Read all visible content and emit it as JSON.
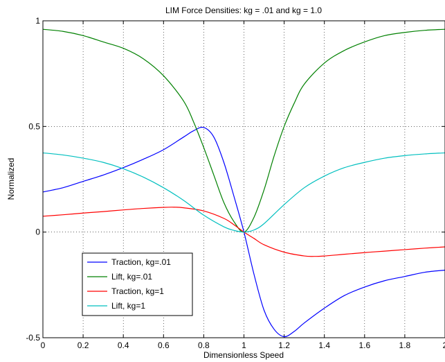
{
  "chart_data": {
    "type": "line",
    "title": "LIM Force Densities: kg = .01 and kg = 1.0",
    "xlabel": "Dimensionless Speed",
    "ylabel": "Normalized",
    "xlim": [
      0,
      2
    ],
    "ylim": [
      -0.5,
      1
    ],
    "grid": true,
    "legend_position": "lower-left",
    "x_ticks": [
      {
        "value": 0,
        "label": "0"
      },
      {
        "value": 0.2,
        "label": "0.2"
      },
      {
        "value": 0.4,
        "label": "0.4"
      },
      {
        "value": 0.6,
        "label": "0.6"
      },
      {
        "value": 0.8,
        "label": "0.8"
      },
      {
        "value": 1.0,
        "label": "1"
      },
      {
        "value": 1.2,
        "label": "1.2"
      },
      {
        "value": 1.4,
        "label": "1.4"
      },
      {
        "value": 1.6,
        "label": "1.6"
      },
      {
        "value": 1.8,
        "label": "1.8"
      },
      {
        "value": 2.0,
        "label": "2"
      }
    ],
    "y_ticks": [
      {
        "value": -0.5,
        "label": "-0.5"
      },
      {
        "value": 0,
        "label": "0"
      },
      {
        "value": 0.5,
        "label": "0.5"
      },
      {
        "value": 1,
        "label": "1"
      }
    ],
    "series": [
      {
        "name": "Traction, kg=.01",
        "color": "#0000ff",
        "x": [
          0,
          0.1,
          0.2,
          0.3,
          0.4,
          0.5,
          0.6,
          0.7,
          0.75,
          0.8,
          0.85,
          0.9,
          0.95,
          1.0,
          1.05,
          1.1,
          1.15,
          1.2,
          1.25,
          1.3,
          1.4,
          1.5,
          1.6,
          1.7,
          1.8,
          1.9,
          2.0
        ],
        "y": [
          0.19,
          0.21,
          0.24,
          0.27,
          0.305,
          0.345,
          0.39,
          0.45,
          0.48,
          0.495,
          0.45,
          0.33,
          0.17,
          0,
          -0.2,
          -0.37,
          -0.46,
          -0.495,
          -0.47,
          -0.43,
          -0.36,
          -0.3,
          -0.26,
          -0.23,
          -0.21,
          -0.19,
          -0.18
        ]
      },
      {
        "name": "Lift, kg=.01",
        "color": "#008000",
        "x": [
          0,
          0.1,
          0.2,
          0.3,
          0.4,
          0.5,
          0.6,
          0.7,
          0.75,
          0.8,
          0.85,
          0.9,
          0.95,
          1.0,
          1.05,
          1.1,
          1.15,
          1.2,
          1.25,
          1.3,
          1.4,
          1.5,
          1.6,
          1.7,
          1.8,
          1.9,
          2.0
        ],
        "y": [
          0.96,
          0.95,
          0.93,
          0.9,
          0.87,
          0.82,
          0.74,
          0.62,
          0.52,
          0.4,
          0.27,
          0.14,
          0.05,
          0,
          0.07,
          0.2,
          0.36,
          0.5,
          0.61,
          0.7,
          0.8,
          0.86,
          0.9,
          0.93,
          0.945,
          0.955,
          0.96
        ]
      },
      {
        "name": "Traction, kg=1",
        "color": "#ff0000",
        "x": [
          0,
          0.1,
          0.2,
          0.3,
          0.4,
          0.5,
          0.6,
          0.65,
          0.7,
          0.8,
          0.9,
          0.95,
          1.0,
          1.05,
          1.1,
          1.2,
          1.3,
          1.35,
          1.4,
          1.5,
          1.6,
          1.7,
          1.8,
          1.9,
          2.0
        ],
        "y": [
          0.075,
          0.082,
          0.09,
          0.097,
          0.105,
          0.112,
          0.117,
          0.118,
          0.115,
          0.1,
          0.065,
          0.035,
          0,
          -0.03,
          -0.06,
          -0.095,
          -0.113,
          -0.115,
          -0.113,
          -0.105,
          -0.097,
          -0.09,
          -0.083,
          -0.076,
          -0.07
        ]
      },
      {
        "name": "Lift, kg=1",
        "color": "#00bfbf",
        "x": [
          0,
          0.1,
          0.2,
          0.3,
          0.4,
          0.5,
          0.6,
          0.7,
          0.8,
          0.9,
          0.95,
          1.0,
          1.05,
          1.1,
          1.2,
          1.3,
          1.4,
          1.5,
          1.6,
          1.7,
          1.8,
          1.9,
          2.0
        ],
        "y": [
          0.375,
          0.365,
          0.35,
          0.33,
          0.3,
          0.26,
          0.21,
          0.15,
          0.08,
          0.025,
          0.008,
          0,
          0.01,
          0.04,
          0.13,
          0.21,
          0.265,
          0.305,
          0.33,
          0.35,
          0.362,
          0.37,
          0.375
        ]
      }
    ]
  }
}
